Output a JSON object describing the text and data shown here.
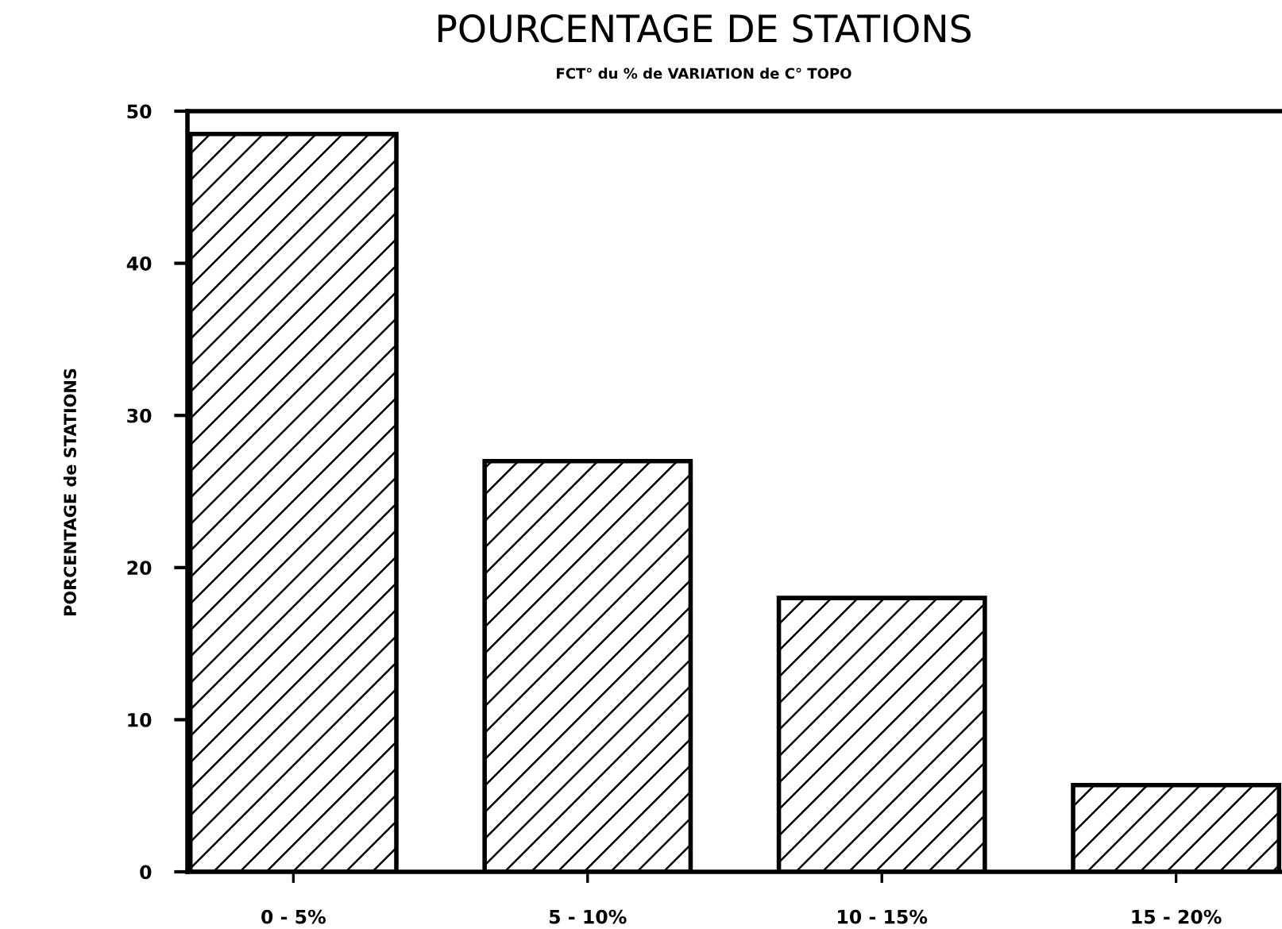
{
  "chart_data": {
    "type": "bar",
    "title": "POURCENTAGE DE STATIONS",
    "subtitle": "FCT° du % de VARIATION de C° TOPO",
    "ylabel": "PORCENTAGE de STATIONS",
    "categories": [
      "0 - 5%",
      "5 - 10%",
      "10 - 15%",
      "15 - 20%"
    ],
    "values": [
      48.5,
      27,
      18,
      5.7
    ],
    "color": "#000000",
    "ylim": [
      0,
      50
    ],
    "yticks": [
      0,
      10,
      20,
      30,
      40,
      50
    ],
    "grid": false
  }
}
